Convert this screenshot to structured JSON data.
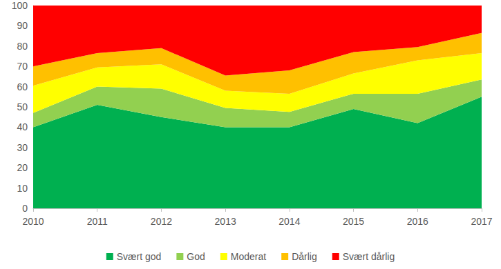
{
  "chart_data": {
    "type": "area",
    "stacked": true,
    "grid": false,
    "legend": "bottom",
    "categories": [
      "2010",
      "2011",
      "2012",
      "2013",
      "2014",
      "2015",
      "2016",
      "2017"
    ],
    "series": [
      {
        "name": "Svært god",
        "color": "#00b050",
        "values": [
          40,
          51,
          45,
          40,
          40,
          49,
          42,
          55
        ]
      },
      {
        "name": "God",
        "color": "#92d050",
        "values": [
          7,
          9,
          14,
          9.5,
          7.5,
          7.5,
          14.5,
          8.5
        ]
      },
      {
        "name": "Moderat",
        "color": "#ffff00",
        "values": [
          13.5,
          9.5,
          12,
          8.5,
          9,
          10,
          16.5,
          13
        ]
      },
      {
        "name": "Dårlig",
        "color": "#ffc000",
        "values": [
          9.5,
          7,
          8,
          7.5,
          11.5,
          10.5,
          6.5,
          10
        ]
      },
      {
        "name": "Svært dårlig",
        "color": "#ff0000",
        "values": [
          30,
          23.5,
          21,
          34.5,
          32,
          23,
          20.5,
          13.5
        ]
      }
    ],
    "ylim": [
      0,
      100
    ],
    "yticks": [
      0,
      10,
      20,
      30,
      40,
      50,
      60,
      70,
      80,
      90,
      100
    ]
  }
}
